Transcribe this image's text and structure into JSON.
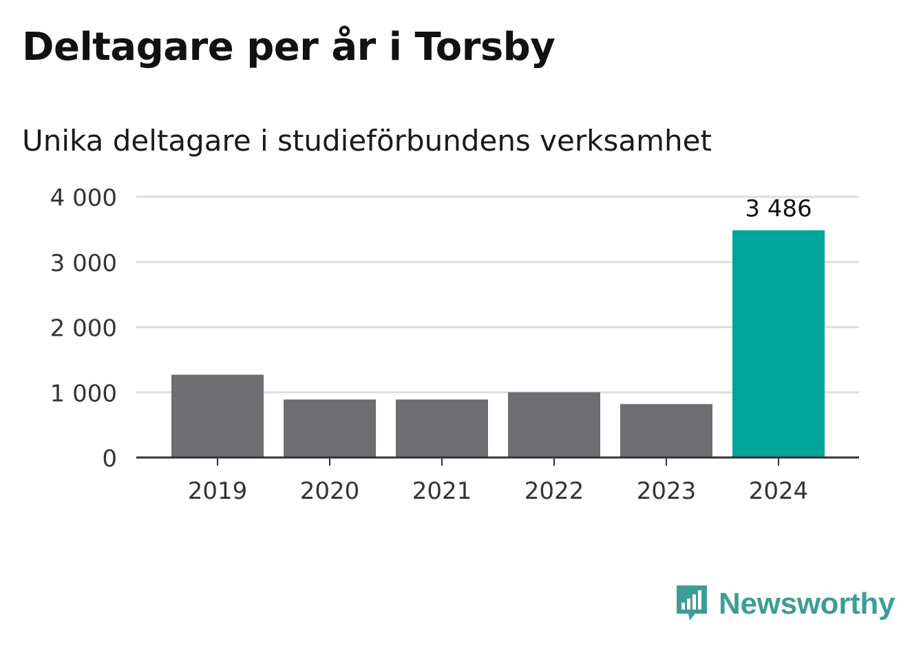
{
  "header": {
    "title": "Deltagare per år i Torsby",
    "subtitle": "Unika deltagare i studieförbundens verksamhet"
  },
  "chart_data": {
    "type": "bar",
    "categories": [
      "2019",
      "2020",
      "2021",
      "2022",
      "2023",
      "2024"
    ],
    "values": [
      1270,
      890,
      890,
      1000,
      820,
      3486
    ],
    "highlight_index": 5,
    "highlight_label": "3 486",
    "ylim": [
      0,
      4000
    ],
    "yticks": [
      0,
      1000,
      2000,
      3000,
      4000
    ],
    "ytick_labels": [
      "0",
      "1 000",
      "2 000",
      "3 000",
      "4 000"
    ],
    "grid": true,
    "colors": {
      "bar": "#6e6d72",
      "highlight": "#00a59a",
      "grid": "#dcdcdc",
      "axis": "#333333"
    }
  },
  "branding": {
    "name": "Newsworthy",
    "logo_icon": "bar-chart-speech-bubble-icon",
    "color": "#3f9c95"
  }
}
